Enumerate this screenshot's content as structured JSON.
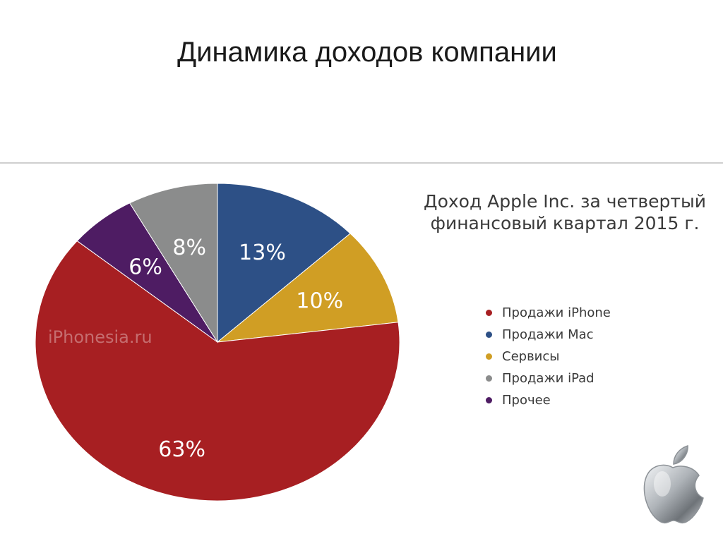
{
  "slide": {
    "title": "Динамика доходов компании"
  },
  "watermark": "iPhonesia.ru",
  "icons": {
    "logo": "apple-logo-icon"
  },
  "chart_data": {
    "type": "pie",
    "title_lines": [
      "Доход Apple Inc. за четвертый",
      "финансовый квартал 2015 г."
    ],
    "legend_position": "right",
    "slices": [
      {
        "name": "Продажи Mac",
        "value": 13,
        "label": "13%",
        "color": "#2d5086"
      },
      {
        "name": "Сервисы",
        "value": 10,
        "label": "10%",
        "color": "#d09e24"
      },
      {
        "name": "Продажи iPhone",
        "value": 63,
        "label": "63%",
        "color": "#a71f22"
      },
      {
        "name": "Прочее",
        "value": 6,
        "label": "6%",
        "color": "#4e1c63"
      },
      {
        "name": "Продажи iPad",
        "value": 8,
        "label": "8%",
        "color": "#8b8c8c"
      }
    ],
    "legend": [
      {
        "name": "Продажи iPhone",
        "color": "#a71f22"
      },
      {
        "name": "Продажи Mac",
        "color": "#2d5086"
      },
      {
        "name": "Сервисы",
        "color": "#d09e24"
      },
      {
        "name": "Продажи iPad",
        "color": "#8b8c8c"
      },
      {
        "name": "Прочее",
        "color": "#4e1c63"
      }
    ]
  }
}
